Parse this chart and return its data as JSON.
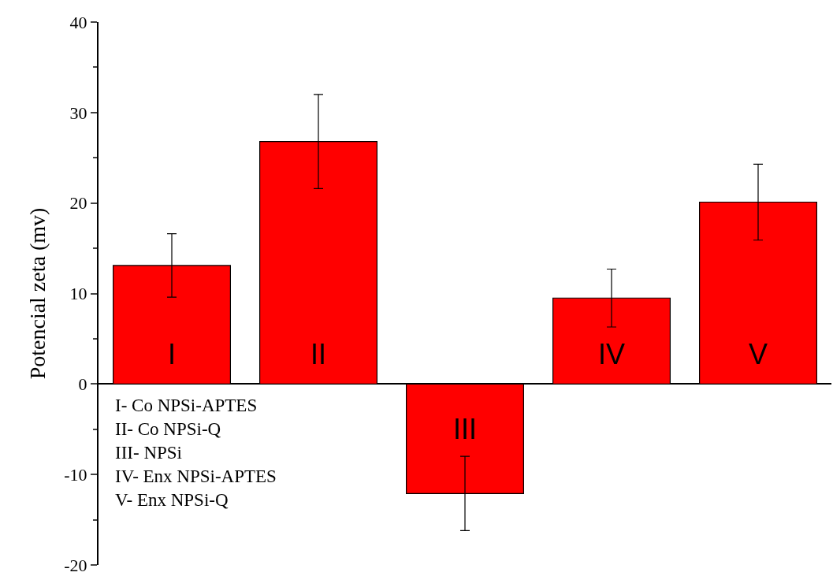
{
  "chart_data": {
    "type": "bar",
    "ylabel": "Potencial zeta (mv)",
    "categories": [
      "I",
      "II",
      "III",
      "IV",
      "V"
    ],
    "values": [
      13.1,
      26.8,
      -12.1,
      9.5,
      20.1
    ],
    "errors": [
      3.5,
      5.2,
      4.1,
      3.2,
      4.2
    ],
    "color": "#ff0000",
    "ylim": [
      -20,
      40
    ],
    "yticks": [
      -20,
      -10,
      0,
      10,
      20,
      30,
      40
    ],
    "annotations": [
      "I- Co NPSi-APTES\nII- Co NPSi-Q\nIII- NPSi\nIV- Enx NPSi-APTES\nV- Enx NPSi-Q"
    ]
  }
}
